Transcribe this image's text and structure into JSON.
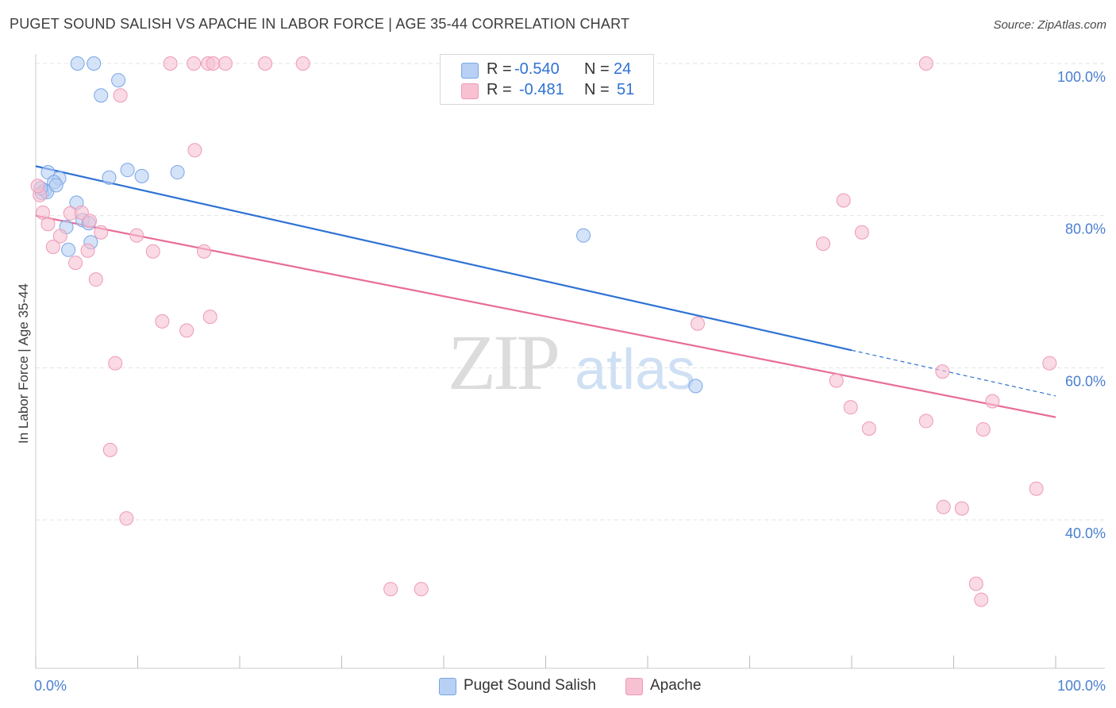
{
  "title": "PUGET SOUND SALISH VS APACHE IN LABOR FORCE | AGE 35-44 CORRELATION CHART",
  "source": "Source: ZipAtlas.com",
  "watermark": {
    "zip": "ZIP",
    "atlas": "atlas"
  },
  "colors": {
    "blue_fill": "#b7d0f3",
    "blue_stroke": "#7aa6e6",
    "blue_line": "#2f72d4",
    "pink_fill": "#f7c1d2",
    "pink_stroke": "#ee9ab6",
    "pink_line": "#e86d97",
    "tick": "#4a7fd0",
    "grid": "#e3e3e3"
  },
  "stats_box": {
    "rows": [
      {
        "series": "blue",
        "r_label": "R =",
        "r_value": "-0.540",
        "n_label": "N =",
        "n_value": "24"
      },
      {
        "series": "pink",
        "r_label": "R =",
        "r_value": "-0.481",
        "n_label": "N =",
        "n_value": "51"
      }
    ]
  },
  "legend": [
    {
      "series": "blue",
      "label": "Puget Sound Salish"
    },
    {
      "series": "pink",
      "label": "Apache"
    }
  ],
  "chart_data": {
    "type": "scatter",
    "title": "PUGET SOUND SALISH VS APACHE IN LABOR FORCE | AGE 35-44 CORRELATION CHART",
    "xlabel": "",
    "ylabel": "In Labor Force | Age 35-44",
    "xlim": [
      0,
      100
    ],
    "ylim": [
      18,
      102
    ],
    "x_tick_labels": [
      {
        "value": 0,
        "label": "0.0%"
      },
      {
        "value": 100,
        "label": "100.0%"
      }
    ],
    "y_tick_labels": [
      {
        "value": 100,
        "label": "100.0%"
      },
      {
        "value": 80,
        "label": "80.0%"
      },
      {
        "value": 60,
        "label": "60.0%"
      },
      {
        "value": 40,
        "label": "40.0%"
      }
    ],
    "y_gridlines": [
      100,
      80,
      60,
      40
    ],
    "x_minor_ticks": [
      0,
      10,
      20,
      30,
      40,
      50,
      60,
      70,
      80,
      90,
      100
    ],
    "series": [
      {
        "name": "Puget Sound Salish",
        "color": "blue",
        "points": [
          [
            4.1,
            100
          ],
          [
            5.7,
            100
          ],
          [
            8.1,
            97.8
          ],
          [
            6.4,
            95.8
          ],
          [
            1.2,
            85.7
          ],
          [
            2.3,
            84.9
          ],
          [
            1.8,
            84.4
          ],
          [
            0.9,
            83.3
          ],
          [
            0.6,
            83.0
          ],
          [
            9.0,
            86.0
          ],
          [
            10.4,
            85.2
          ],
          [
            7.2,
            85.0
          ],
          [
            13.9,
            85.7
          ],
          [
            4.0,
            81.7
          ],
          [
            4.6,
            79.4
          ],
          [
            5.2,
            79.0
          ],
          [
            3.0,
            78.5
          ],
          [
            5.4,
            76.5
          ],
          [
            3.2,
            75.5
          ],
          [
            53.7,
            77.4
          ],
          [
            64.7,
            57.6
          ],
          [
            1.1,
            83.1
          ],
          [
            0.5,
            83.6
          ],
          [
            2.0,
            84.0
          ]
        ],
        "trend": {
          "x0": 0.0,
          "y0": 86.5,
          "x1": 80.0,
          "y1": 62.3,
          "dashed_to_x": 100,
          "dashed_to_y": 56.3
        }
      },
      {
        "name": "Apache",
        "color": "pink",
        "points": [
          [
            13.2,
            100
          ],
          [
            15.5,
            100
          ],
          [
            16.9,
            100
          ],
          [
            17.4,
            100
          ],
          [
            18.6,
            100
          ],
          [
            22.5,
            100
          ],
          [
            26.2,
            100
          ],
          [
            87.3,
            100
          ],
          [
            8.3,
            95.8
          ],
          [
            15.6,
            88.6
          ],
          [
            0.4,
            82.7
          ],
          [
            0.7,
            80.4
          ],
          [
            1.2,
            78.9
          ],
          [
            3.4,
            80.3
          ],
          [
            4.5,
            80.4
          ],
          [
            5.3,
            79.3
          ],
          [
            6.4,
            77.8
          ],
          [
            2.4,
            77.3
          ],
          [
            9.9,
            77.4
          ],
          [
            1.7,
            75.9
          ],
          [
            5.1,
            75.4
          ],
          [
            11.5,
            75.3
          ],
          [
            16.5,
            75.3
          ],
          [
            3.9,
            73.8
          ],
          [
            5.9,
            71.6
          ],
          [
            12.4,
            66.1
          ],
          [
            17.1,
            66.7
          ],
          [
            14.8,
            64.9
          ],
          [
            7.8,
            60.6
          ],
          [
            7.3,
            49.2
          ],
          [
            8.9,
            40.2
          ],
          [
            34.8,
            30.9
          ],
          [
            37.8,
            30.9
          ],
          [
            79.2,
            82.0
          ],
          [
            77.2,
            76.3
          ],
          [
            81.0,
            77.8
          ],
          [
            64.9,
            65.8
          ],
          [
            78.5,
            58.3
          ],
          [
            79.9,
            54.8
          ],
          [
            81.7,
            52.0
          ],
          [
            87.3,
            53.0
          ],
          [
            88.9,
            59.5
          ],
          [
            93.8,
            55.6
          ],
          [
            92.9,
            51.9
          ],
          [
            99.4,
            60.6
          ],
          [
            89.0,
            41.7
          ],
          [
            90.8,
            41.5
          ],
          [
            98.1,
            44.1
          ],
          [
            92.2,
            31.6
          ],
          [
            92.7,
            29.5
          ],
          [
            0.2,
            83.9
          ]
        ],
        "trend": {
          "x0": 0.0,
          "y0": 80.0,
          "x1": 100.0,
          "y1": 53.5
        }
      }
    ]
  }
}
